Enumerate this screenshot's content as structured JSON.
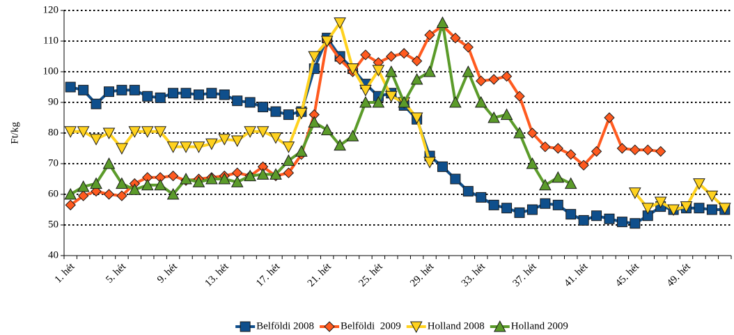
{
  "chart_data": {
    "type": "line",
    "y_label": "Ft/kg",
    "categories": [
      "1. hét",
      null,
      null,
      null,
      "5. hét",
      null,
      null,
      null,
      "9. hét",
      null,
      null,
      null,
      "13. hét",
      null,
      null,
      null,
      "17. hét",
      null,
      null,
      null,
      "21. hét",
      null,
      null,
      null,
      "25. hét",
      null,
      null,
      null,
      "29. hét",
      null,
      null,
      null,
      "33. hét",
      null,
      null,
      null,
      "37. hét",
      null,
      null,
      null,
      "41. hét",
      null,
      null,
      null,
      "45. hét",
      null,
      null,
      null,
      "49. hét",
      null,
      null,
      null
    ],
    "ylim": [
      40,
      120
    ],
    "yticks": [
      40,
      50,
      60,
      70,
      80,
      90,
      100,
      110,
      120
    ],
    "grid": true,
    "legend": "bottom",
    "series": [
      {
        "name": "Belföldi 2008",
        "color": "#0f4f8c",
        "marker": "square",
        "values": [
          95,
          94,
          89.5,
          93.5,
          94,
          94,
          92,
          91.5,
          93,
          93,
          92.5,
          93,
          92.5,
          90.5,
          90,
          88.5,
          87,
          86,
          87,
          101,
          111,
          105,
          101,
          96,
          92,
          93,
          89,
          84.5,
          72.5,
          69,
          65,
          61,
          59,
          56.5,
          55.5,
          54,
          55,
          57,
          56.5,
          53.5,
          51.5,
          53,
          52,
          51,
          50.5,
          53,
          56,
          55,
          55.5,
          55.5,
          55,
          55
        ]
      },
      {
        "name": "Belföldi  2009",
        "color": "#ff5a1f",
        "marker": "diamond",
        "values": [
          56.5,
          59.5,
          61,
          60,
          59.5,
          63.5,
          65.5,
          65.5,
          66,
          64.5,
          65,
          65.5,
          66,
          67,
          66,
          69,
          66,
          67,
          73,
          86,
          110,
          104,
          100,
          105.5,
          103,
          105,
          106,
          103.5,
          112,
          115,
          111,
          108,
          97,
          97.5,
          98.5,
          92,
          80,
          75.5,
          75,
          73,
          69.5,
          74,
          85,
          75,
          74.5,
          74.5,
          74,
          null,
          null,
          null,
          null,
          null
        ]
      },
      {
        "name": "Holland 2008",
        "color": "#ffd21f",
        "marker": "triangle-down",
        "values": [
          80.5,
          80.5,
          78,
          80,
          75,
          80.5,
          80.5,
          80.5,
          75.5,
          75.5,
          75.5,
          76.5,
          78,
          77.5,
          80.5,
          80.5,
          78.5,
          75.5,
          86.5,
          105,
          110,
          116,
          101,
          94,
          100.5,
          92,
          90,
          85,
          70.5,
          null,
          null,
          null,
          null,
          null,
          null,
          null,
          null,
          null,
          null,
          null,
          null,
          null,
          null,
          null,
          60.5,
          55.5,
          57.5,
          55,
          56,
          63.5,
          59.5,
          55.5
        ]
      },
      {
        "name": "Holland 2009",
        "color": "#5b9b2a",
        "marker": "triangle",
        "values": [
          60,
          62.5,
          63.5,
          70,
          63.5,
          61.5,
          63,
          63,
          60,
          65,
          64,
          65,
          65,
          64,
          66,
          66.5,
          66.5,
          71,
          74,
          83.5,
          81,
          76,
          79,
          90,
          90,
          100,
          90,
          97.5,
          100,
          116,
          90,
          100,
          90,
          85,
          86,
          80,
          70,
          63,
          65.5,
          63.5,
          null,
          null,
          null,
          null,
          null,
          null,
          null,
          null,
          null,
          null,
          null,
          null
        ]
      }
    ]
  }
}
